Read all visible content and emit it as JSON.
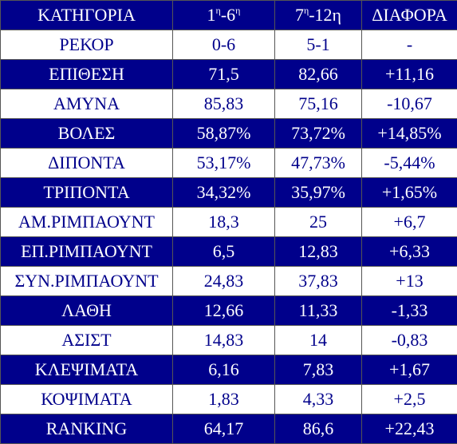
{
  "table": {
    "header": [
      {
        "parts": [
          {
            "text": "ΚΑΤΗΓΟΡΙΑ"
          }
        ]
      },
      {
        "parts": [
          {
            "text": "1"
          },
          {
            "text": "η",
            "sup": true
          },
          {
            "text": "-6"
          },
          {
            "text": "η",
            "sup": true
          }
        ]
      },
      {
        "parts": [
          {
            "text": "7"
          },
          {
            "text": "η",
            "sup": true
          },
          {
            "text": "-12η"
          }
        ]
      },
      {
        "parts": [
          {
            "text": "ΔΙΑΦΟΡΑ"
          }
        ]
      }
    ],
    "rows": [
      [
        "ΡΕΚΟΡ",
        "0-6",
        "5-1",
        "-"
      ],
      [
        "ΕΠΙΘΕΣΗ",
        "71,5",
        "82,66",
        "+11,16"
      ],
      [
        "ΑΜΥΝΑ",
        "85,83",
        "75,16",
        "-10,67"
      ],
      [
        "ΒΟΛΕΣ",
        "58,87%",
        "73,72%",
        "+14,85%"
      ],
      [
        "ΔΙΠΟΝΤΑ",
        "53,17%",
        "47,73%",
        "-5,44%"
      ],
      [
        "ΤΡΙΠΟΝΤΑ",
        "34,32%",
        "35,97%",
        "+1,65%"
      ],
      [
        "ΑΜ.ΡΙΜΠΑΟΥΝΤ",
        "18,3",
        "25",
        "+6,7"
      ],
      [
        "ΕΠ.ΡΙΜΠΑΟΥΝΤ",
        "6,5",
        "12,83",
        "+6,33"
      ],
      [
        "ΣΥΝ.ΡΙΜΠΑΟΥΝΤ",
        "24,83",
        "37,83",
        "+13"
      ],
      [
        "ΛΑΘΗ",
        "12,66",
        "11,33",
        "-1,33"
      ],
      [
        "ΑΣΙΣΤ",
        "14,83",
        "14",
        "-0,83"
      ],
      [
        "ΚΛΕΨΙΜΑΤΑ",
        "6,16",
        "7,83",
        "+1,67"
      ],
      [
        "ΚΟΨΙΜΑΤΑ",
        "1,83",
        "4,33",
        "+2,5"
      ],
      [
        "RANKING",
        "64,17",
        "86,6",
        "+22,43"
      ]
    ]
  }
}
